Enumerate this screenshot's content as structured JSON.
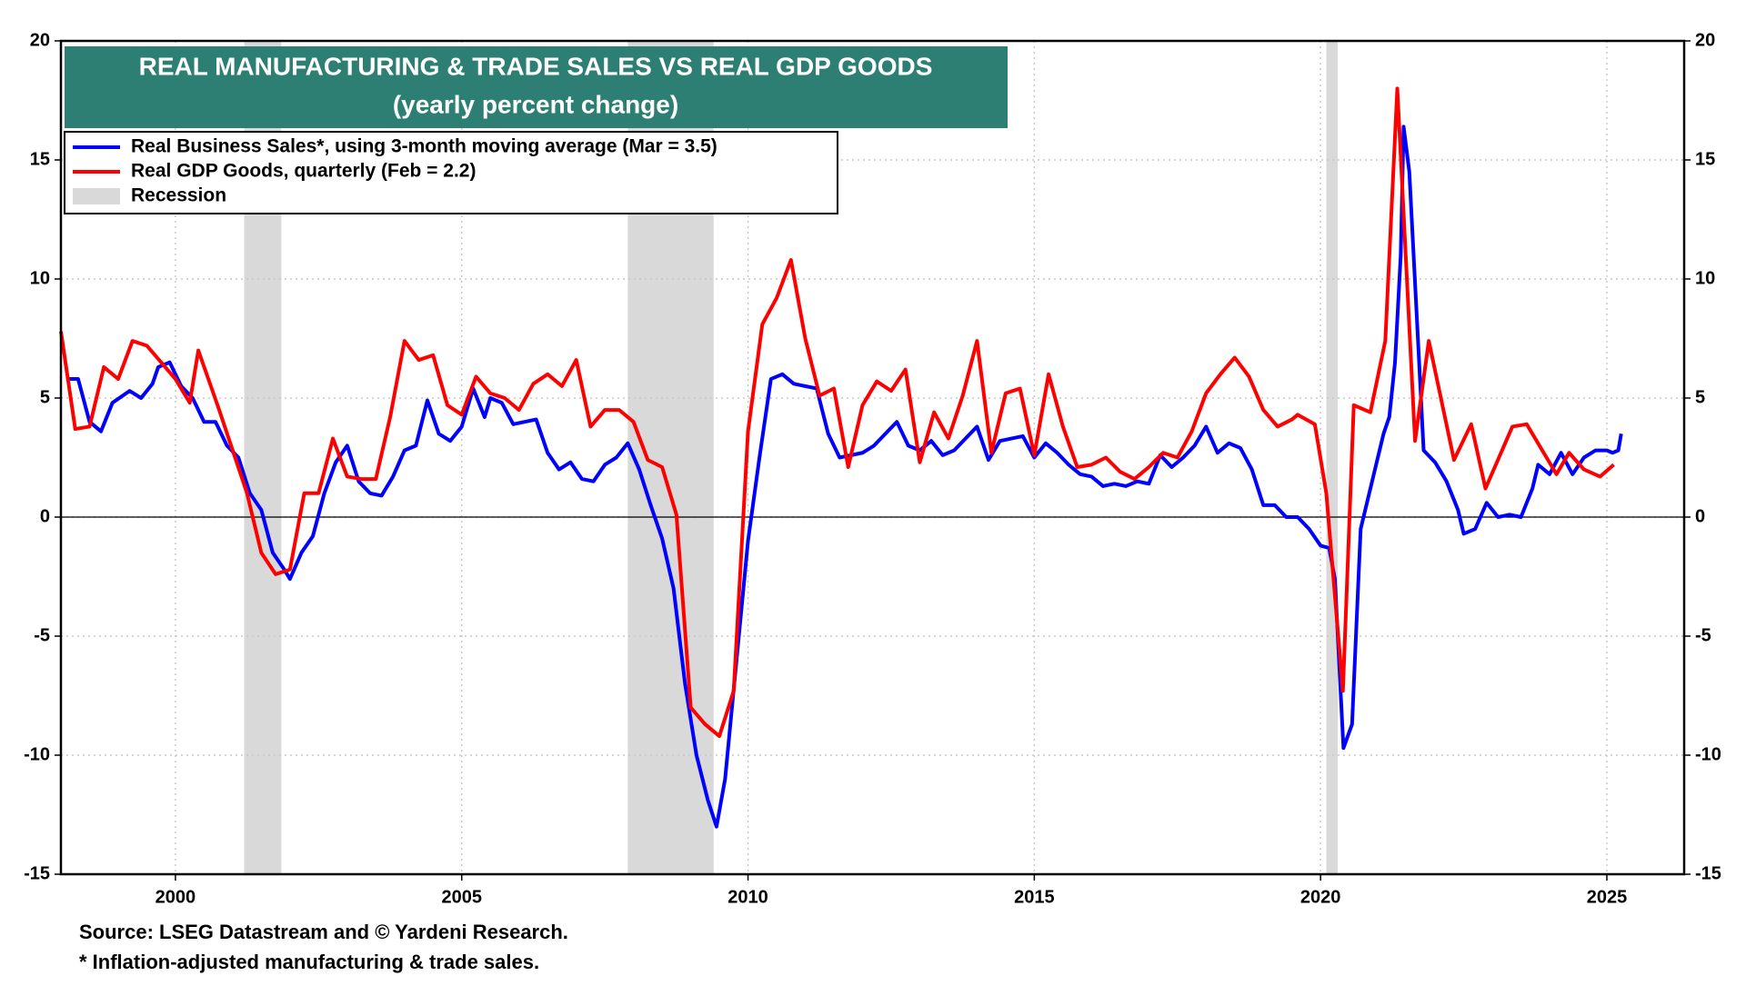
{
  "chart_data": {
    "type": "line",
    "title": "REAL MANUFACTURING & TRADE SALES VS REAL GDP GOODS",
    "subtitle": "(yearly percent change)",
    "xlim": [
      1998,
      2026.35
    ],
    "xticks": [
      2000,
      2005,
      2010,
      2015,
      2020,
      2025
    ],
    "ylim": [
      -15,
      20
    ],
    "yticks": [
      -15,
      -10,
      -5,
      0,
      5,
      10,
      15,
      20
    ],
    "y2lim": [
      -15,
      20
    ],
    "y2ticks": [
      -15,
      -10,
      -5,
      0,
      5,
      10,
      15,
      20
    ],
    "grid": true,
    "recession_name": "Recession",
    "recession_color": "#d9d9d9",
    "recessions": [
      [
        2001.2,
        2001.85
      ],
      [
        2007.9,
        2009.4
      ],
      [
        2020.1,
        2020.3
      ]
    ],
    "series": [
      {
        "name": "Real Business Sales*, using 3-month moving average (Mar = 3.5)",
        "color": "#0000ff",
        "x": [
          1998.1,
          1998.3,
          1998.5,
          1998.7,
          1998.9,
          1999.2,
          1999.4,
          1999.6,
          1999.7,
          1999.9,
          2000.1,
          2000.3,
          2000.5,
          2000.7,
          2000.9,
          2001.1,
          2001.3,
          2001.5,
          2001.7,
          2001.9,
          2002.0,
          2002.2,
          2002.4,
          2002.6,
          2002.8,
          2003.0,
          2003.2,
          2003.4,
          2003.6,
          2003.8,
          2004.0,
          2004.2,
          2004.4,
          2004.6,
          2004.8,
          2005.0,
          2005.2,
          2005.4,
          2005.5,
          2005.7,
          2005.9,
          2006.1,
          2006.3,
          2006.5,
          2006.7,
          2006.9,
          2007.1,
          2007.3,
          2007.5,
          2007.7,
          2007.9,
          2008.1,
          2008.3,
          2008.5,
          2008.7,
          2008.9,
          2009.1,
          2009.3,
          2009.45,
          2009.6,
          2009.8,
          2010.0,
          2010.2,
          2010.4,
          2010.6,
          2010.8,
          2011.0,
          2011.2,
          2011.4,
          2011.6,
          2011.8,
          2012.0,
          2012.2,
          2012.4,
          2012.6,
          2012.8,
          2013.0,
          2013.2,
          2013.4,
          2013.6,
          2013.8,
          2014.0,
          2014.2,
          2014.4,
          2014.6,
          2014.8,
          2015.0,
          2015.2,
          2015.4,
          2015.6,
          2015.8,
          2016.0,
          2016.2,
          2016.4,
          2016.6,
          2016.8,
          2017.0,
          2017.2,
          2017.4,
          2017.6,
          2017.8,
          2018.0,
          2018.2,
          2018.4,
          2018.6,
          2018.8,
          2019.0,
          2019.2,
          2019.4,
          2019.6,
          2019.8,
          2020.0,
          2020.15,
          2020.25,
          2020.4,
          2020.55,
          2020.7,
          2020.9,
          2021.1,
          2021.2,
          2021.3,
          2021.4,
          2021.45,
          2021.55,
          2021.7,
          2021.8,
          2022.0,
          2022.2,
          2022.4,
          2022.5,
          2022.7,
          2022.9,
          2023.1,
          2023.3,
          2023.5,
          2023.7,
          2023.8,
          2024.0,
          2024.2,
          2024.4,
          2024.6,
          2024.8,
          2025.0,
          2025.1,
          2025.2,
          2025.25
        ],
        "values": [
          5.8,
          5.8,
          4.0,
          3.6,
          4.8,
          5.3,
          5.0,
          5.6,
          6.3,
          6.5,
          5.5,
          5.0,
          4.0,
          4.0,
          3.0,
          2.5,
          1.0,
          0.3,
          -1.5,
          -2.2,
          -2.6,
          -1.5,
          -0.8,
          1.0,
          2.3,
          3.0,
          1.5,
          1.0,
          0.9,
          1.7,
          2.8,
          3.0,
          4.9,
          3.5,
          3.2,
          3.8,
          5.4,
          4.2,
          5.0,
          4.8,
          3.9,
          4.0,
          4.1,
          2.7,
          2.0,
          2.3,
          1.6,
          1.5,
          2.2,
          2.5,
          3.1,
          2.0,
          0.5,
          -0.9,
          -3.0,
          -7.0,
          -10.0,
          -11.9,
          -13.0,
          -11.0,
          -6.0,
          -1.0,
          2.5,
          5.8,
          6.0,
          5.6,
          5.5,
          5.4,
          3.5,
          2.5,
          2.6,
          2.7,
          3.0,
          3.5,
          4.0,
          3.0,
          2.8,
          3.2,
          2.6,
          2.8,
          3.3,
          3.8,
          2.4,
          3.2,
          3.3,
          3.4,
          2.5,
          3.1,
          2.7,
          2.2,
          1.8,
          1.7,
          1.3,
          1.4,
          1.3,
          1.5,
          1.4,
          2.6,
          2.1,
          2.5,
          3.0,
          3.8,
          2.7,
          3.1,
          2.9,
          2.0,
          0.5,
          0.5,
          0.0,
          0.0,
          -0.5,
          -1.2,
          -1.3,
          -2.6,
          -9.7,
          -8.7,
          -0.5,
          1.5,
          3.5,
          4.2,
          6.5,
          11.0,
          16.4,
          14.5,
          7.5,
          2.8,
          2.3,
          1.5,
          0.3,
          -0.7,
          -0.5,
          0.6,
          0.0,
          0.1,
          0.0,
          1.2,
          2.2,
          1.8,
          2.7,
          1.8,
          2.5,
          2.8,
          2.8,
          2.7,
          2.8,
          3.5
        ]
      },
      {
        "name": "Real GDP Goods, quarterly (Feb = 2.2)",
        "color": "#ff0000",
        "x": [
          1998.0,
          1998.25,
          1998.5,
          1998.75,
          1999.0,
          1999.25,
          1999.5,
          1999.75,
          2000.0,
          2000.25,
          2000.4,
          2000.75,
          2001.0,
          2001.25,
          2001.5,
          2001.75,
          2002.0,
          2002.25,
          2002.5,
          2002.75,
          2003.0,
          2003.25,
          2003.5,
          2003.75,
          2004.0,
          2004.25,
          2004.5,
          2004.75,
          2005.0,
          2005.25,
          2005.5,
          2005.75,
          2006.0,
          2006.25,
          2006.5,
          2006.75,
          2007.0,
          2007.25,
          2007.5,
          2007.75,
          2008.0,
          2008.25,
          2008.5,
          2008.75,
          2009.0,
          2009.25,
          2009.5,
          2009.75,
          2010.0,
          2010.25,
          2010.5,
          2010.75,
          2011.0,
          2011.25,
          2011.5,
          2011.75,
          2012.0,
          2012.25,
          2012.5,
          2012.75,
          2013.0,
          2013.25,
          2013.5,
          2013.75,
          2014.0,
          2014.25,
          2014.5,
          2014.75,
          2015.0,
          2015.25,
          2015.5,
          2015.75,
          2016.0,
          2016.25,
          2016.5,
          2016.75,
          2017.0,
          2017.25,
          2017.5,
          2017.75,
          2018.0,
          2018.25,
          2018.5,
          2018.75,
          2019.0,
          2019.25,
          2019.5,
          2019.6,
          2019.9,
          2020.1,
          2020.39,
          2020.58,
          2020.87,
          2021.13,
          2021.34,
          2021.65,
          2021.89,
          2022.33,
          2022.63,
          2022.88,
          2023.35,
          2023.6,
          2024.12,
          2024.34,
          2024.6,
          2024.88,
          2025.12
        ],
        "values": [
          7.8,
          3.7,
          3.8,
          6.3,
          5.8,
          7.4,
          7.2,
          6.5,
          5.8,
          4.8,
          7.0,
          4.6,
          2.8,
          1.0,
          -1.5,
          -2.4,
          -2.2,
          1.0,
          1.0,
          3.3,
          1.7,
          1.6,
          1.6,
          4.2,
          7.4,
          6.6,
          6.8,
          4.7,
          4.3,
          5.9,
          5.2,
          5.0,
          4.5,
          5.6,
          6.0,
          5.5,
          6.6,
          3.8,
          4.5,
          4.5,
          4.0,
          2.4,
          2.1,
          0.1,
          -8.0,
          -8.7,
          -9.2,
          -7.3,
          3.6,
          8.1,
          9.2,
          10.8,
          7.5,
          5.1,
          5.4,
          2.1,
          4.7,
          5.7,
          5.3,
          6.2,
          2.3,
          4.4,
          3.3,
          5.1,
          7.4,
          2.7,
          5.2,
          5.4,
          2.6,
          6.0,
          3.8,
          2.1,
          2.2,
          2.5,
          1.9,
          1.6,
          2.1,
          2.7,
          2.5,
          3.6,
          5.2,
          6.0,
          6.7,
          5.9,
          4.5,
          3.8,
          4.1,
          4.3,
          3.9,
          1.0,
          -7.3,
          4.7,
          4.4,
          7.4,
          18.0,
          3.2,
          7.4,
          2.4,
          3.9,
          1.2,
          3.8,
          3.9,
          1.8,
          2.7,
          2.0,
          1.7,
          2.2
        ]
      }
    ],
    "notes": [
      "Source: LSEG Datastream and © Yardeni Research.",
      "* Inflation-adjusted manufacturing & trade sales."
    ]
  }
}
